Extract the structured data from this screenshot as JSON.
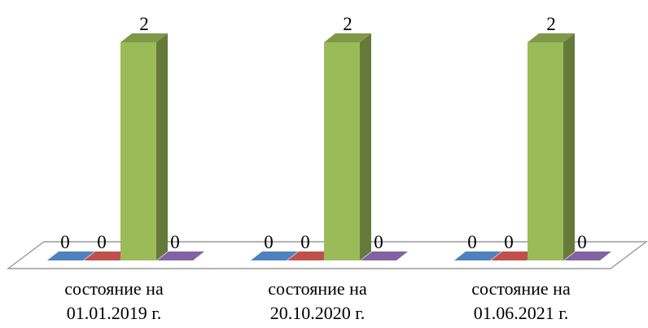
{
  "chart_data": {
    "type": "bar",
    "style": "3d-clustered-column",
    "categories": [
      [
        "состояние на",
        "01.01.2019 г."
      ],
      [
        "состояние на",
        "20.10.2020 г."
      ],
      [
        "состояние на",
        "01.06.2021 г."
      ]
    ],
    "series": [
      {
        "color": "#4F81BD",
        "values": [
          0,
          0,
          0
        ]
      },
      {
        "color": "#C0504D",
        "values": [
          0,
          0,
          0
        ]
      },
      {
        "color": "#9BBB59",
        "values": [
          2,
          2,
          2
        ]
      },
      {
        "color": "#8064A2",
        "values": [
          0,
          0,
          0
        ]
      }
    ],
    "data_labels": [
      [
        "0",
        "0",
        "2",
        "0"
      ],
      [
        "0",
        "0",
        "2",
        "0"
      ],
      [
        "0",
        "0",
        "2",
        "0"
      ]
    ],
    "ylim": [
      0,
      2
    ],
    "grid": false,
    "legend": "none",
    "axis_lines": false
  }
}
